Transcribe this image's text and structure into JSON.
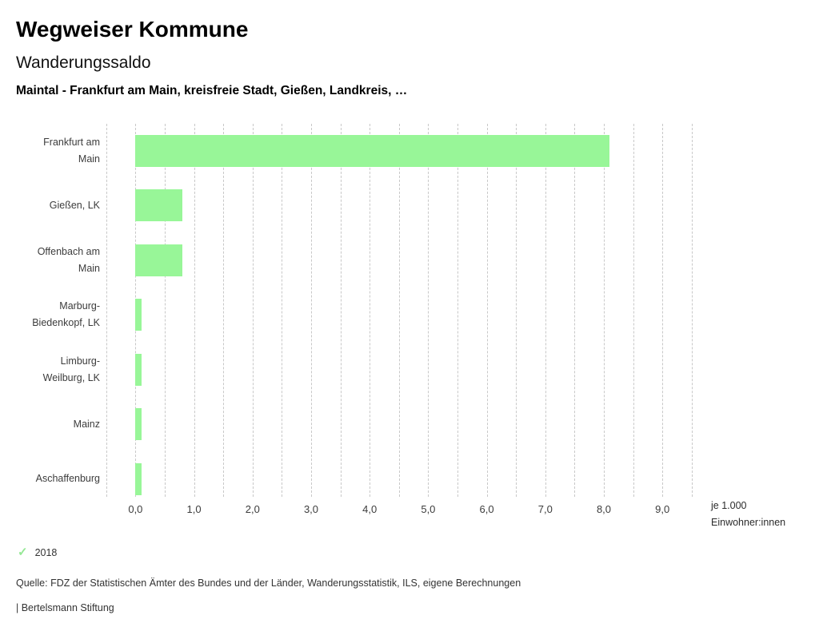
{
  "header": {
    "app_title": "Wegweiser Kommune",
    "chart_title": "Wanderungssaldo",
    "selection": "Maintal - Frankfurt am Main, kreisfreie Stadt, Gießen, Landkreis, …"
  },
  "chart_data": {
    "type": "bar",
    "orientation": "horizontal",
    "title": "Wanderungssaldo",
    "categories": [
      "Frankfurt am Main",
      "Gießen, LK",
      "Offenbach am Main",
      "Marburg-Biedenkopf, LK",
      "Limburg-Weilburg, LK",
      "Mainz",
      "Aschaffenburg"
    ],
    "category_label_lines": [
      [
        "Frankfurt am",
        "Main"
      ],
      [
        "Gießen, LK"
      ],
      [
        "Offenbach am",
        "Main"
      ],
      [
        "Marburg-",
        "Biedenkopf, LK"
      ],
      [
        "Limburg-",
        "Weilburg, LK"
      ],
      [
        "Mainz"
      ],
      [
        "Aschaffenburg"
      ]
    ],
    "values": [
      8.1,
      0.8,
      0.8,
      0.1,
      0.1,
      0.1,
      0.1
    ],
    "series_name": "2018",
    "x_tick_labels": [
      "0,0",
      "1,0",
      "2,0",
      "3,0",
      "4,0",
      "5,0",
      "6,0",
      "7,0",
      "8,0",
      "9,0"
    ],
    "x_tick_values": [
      0,
      1,
      2,
      3,
      4,
      5,
      6,
      7,
      8,
      9
    ],
    "xlim": [
      -0.5,
      9.5
    ],
    "minor_grid_step": 0.5,
    "grid": "vertical-dashed",
    "xlabel_lines": [
      "je 1.000",
      "Einwohner:innen"
    ],
    "bar_color": "#98f698",
    "grid_color": "#c8c8c8"
  },
  "legend": {
    "check_icon": "✓",
    "check_color": "#95e895",
    "year": "2018"
  },
  "footer": {
    "source": "Quelle: FDZ der Statistischen Ämter des Bundes und der Länder, Wanderungsstatistik, ILS, eigene Berechnungen",
    "branding": "| Bertelsmann Stiftung"
  }
}
